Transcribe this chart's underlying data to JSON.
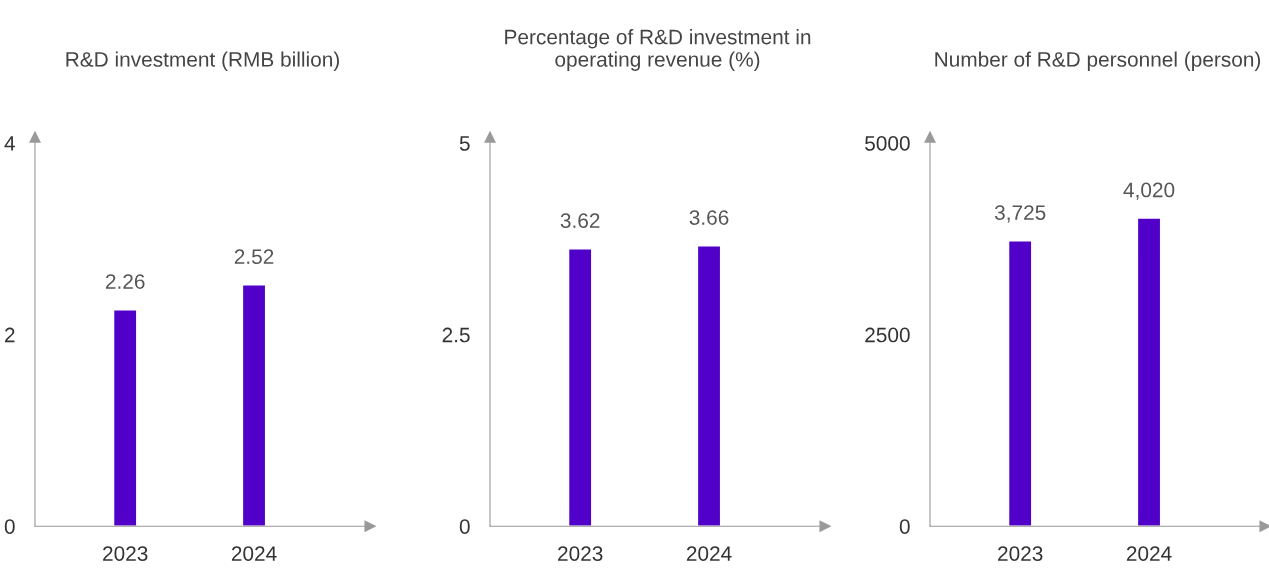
{
  "chart_data": [
    {
      "type": "bar",
      "title": "R&D investment (RMB billion)",
      "categories": [
        "2023",
        "2024"
      ],
      "values": [
        2.26,
        2.52
      ],
      "color": "#5000c8",
      "ylim": [
        0,
        4
      ],
      "yticks": [
        0,
        2,
        4
      ],
      "data_labels": true,
      "grid": false,
      "legend": false
    },
    {
      "type": "bar",
      "title": "Percentage of R&D investment in operating revenue (%)",
      "categories": [
        "2023",
        "2024"
      ],
      "values": [
        3.62,
        3.66
      ],
      "color": "#5000c8",
      "ylim": [
        0,
        5
      ],
      "yticks": [
        0,
        2.5,
        5
      ],
      "data_labels": true,
      "grid": false,
      "legend": false
    },
    {
      "type": "bar",
      "title": "Number of R&D personnel (person)",
      "categories": [
        "2023",
        "2024"
      ],
      "values": [
        3725,
        4020
      ],
      "value_labels": [
        "3,725",
        "4,020"
      ],
      "color": "#5000c8",
      "ylim": [
        0,
        5000
      ],
      "yticks": [
        0,
        2500,
        5000
      ],
      "grid": false,
      "legend": false
    }
  ]
}
